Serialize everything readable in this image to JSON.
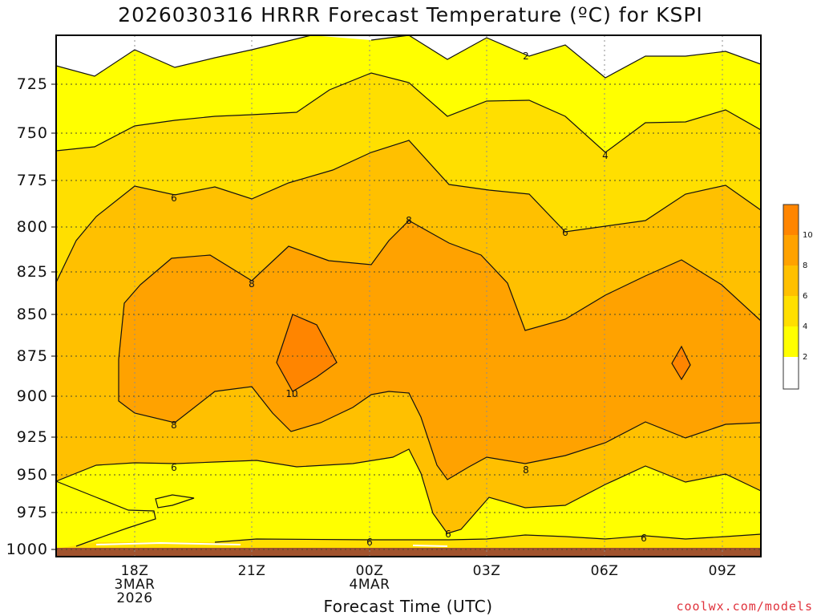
{
  "title": "2026030316 HRRR Forecast Temperature (ºC) for KSPI",
  "xlabel": "Forecast Time (UTC)",
  "credit": "coolwx.com/models",
  "colors": {
    "white": "#ffffff",
    "c0_2": "#ffffff",
    "c2_4": "#ffff00",
    "c4_6": "#ffdf00",
    "c6_8": "#ffc000",
    "c8_10": "#ffa200",
    "c10_12": "#ff8500",
    "ground": "#a0522d"
  },
  "chart_data": {
    "type": "heatmap",
    "title": "2026030316 HRRR Forecast Temperature (ºC) for KSPI",
    "xlabel": "Forecast Time (UTC)",
    "ylabel": "",
    "y_ticks": [
      "725",
      "750",
      "775",
      "800",
      "825",
      "850",
      "875",
      "900",
      "925",
      "950",
      "975",
      "1000"
    ],
    "x_ticks": [
      {
        "label": "18Z",
        "sub": [
          "3MAR",
          "2026"
        ]
      },
      {
        "label": "21Z",
        "sub": []
      },
      {
        "label": "00Z",
        "sub": [
          "4MAR"
        ]
      },
      {
        "label": "03Z",
        "sub": []
      },
      {
        "label": "06Z",
        "sub": []
      },
      {
        "label": "09Z",
        "sub": []
      }
    ],
    "contour_levels": [
      2,
      4,
      6,
      8,
      10
    ],
    "colorbar_labels": [
      "10",
      "8",
      "6",
      "4",
      "2"
    ],
    "grid": true,
    "contour_labels": [
      "2",
      "4",
      "6",
      "6",
      "8",
      "8",
      "10",
      "8",
      "6",
      "8",
      "6",
      "6",
      "6"
    ]
  }
}
